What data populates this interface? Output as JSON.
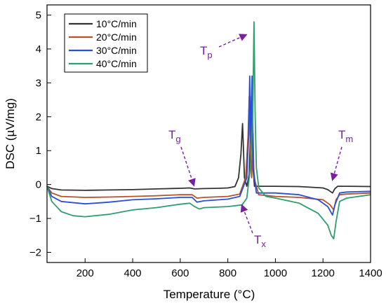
{
  "chart_data": {
    "type": "line",
    "xlabel": "Temperature (°C)",
    "ylabel": "DSC (µV/mg)",
    "xlim": [
      40,
      1400
    ],
    "ylim": [
      -2.3,
      5.3
    ],
    "xticks": [
      200,
      400,
      600,
      800,
      1000,
      1200,
      1400
    ],
    "yticks": [
      -2,
      -1,
      0,
      1,
      2,
      3,
      4,
      5
    ],
    "grid": false,
    "legend_position": "top-left",
    "series": [
      {
        "name": "10°C/min",
        "color": "#333333",
        "points": [
          [
            40,
            -0.05
          ],
          [
            60,
            -0.12
          ],
          [
            100,
            -0.16
          ],
          [
            200,
            -0.17
          ],
          [
            300,
            -0.16
          ],
          [
            400,
            -0.15
          ],
          [
            500,
            -0.13
          ],
          [
            600,
            -0.11
          ],
          [
            640,
            -0.1
          ],
          [
            660,
            -0.13
          ],
          [
            700,
            -0.12
          ],
          [
            760,
            -0.11
          ],
          [
            800,
            -0.1
          ],
          [
            830,
            -0.06
          ],
          [
            845,
            0.2
          ],
          [
            855,
            0.9
          ],
          [
            862,
            1.8
          ],
          [
            866,
            1.0
          ],
          [
            870,
            0.2
          ],
          [
            880,
            -0.05
          ],
          [
            890,
            0.3
          ],
          [
            900,
            2.6
          ],
          [
            906,
            0.5
          ],
          [
            912,
            -0.05
          ],
          [
            1000,
            -0.05
          ],
          [
            1100,
            -0.06
          ],
          [
            1200,
            -0.1
          ],
          [
            1220,
            -0.15
          ],
          [
            1240,
            -0.25
          ],
          [
            1250,
            -0.12
          ],
          [
            1262,
            -0.05
          ],
          [
            1300,
            -0.05
          ],
          [
            1400,
            -0.06
          ]
        ]
      },
      {
        "name": "20°C/min",
        "color": "#b5512b",
        "points": [
          [
            40,
            -0.05
          ],
          [
            60,
            -0.25
          ],
          [
            100,
            -0.35
          ],
          [
            200,
            -0.38
          ],
          [
            300,
            -0.37
          ],
          [
            400,
            -0.35
          ],
          [
            500,
            -0.33
          ],
          [
            600,
            -0.3
          ],
          [
            650,
            -0.3
          ],
          [
            670,
            -0.4
          ],
          [
            700,
            -0.38
          ],
          [
            800,
            -0.35
          ],
          [
            850,
            -0.28
          ],
          [
            875,
            0.2
          ],
          [
            885,
            1.4
          ],
          [
            890,
            2.6
          ],
          [
            895,
            1.0
          ],
          [
            900,
            0.2
          ],
          [
            906,
            1.5
          ],
          [
            910,
            0.2
          ],
          [
            930,
            -0.3
          ],
          [
            1000,
            -0.35
          ],
          [
            1100,
            -0.38
          ],
          [
            1200,
            -0.45
          ],
          [
            1230,
            -0.6
          ],
          [
            1245,
            -0.75
          ],
          [
            1255,
            -0.45
          ],
          [
            1270,
            -0.3
          ],
          [
            1300,
            -0.28
          ],
          [
            1400,
            -0.25
          ]
        ]
      },
      {
        "name": "30°C/min",
        "color": "#2a4fd6",
        "points": [
          [
            40,
            -0.05
          ],
          [
            60,
            -0.35
          ],
          [
            100,
            -0.5
          ],
          [
            200,
            -0.57
          ],
          [
            300,
            -0.52
          ],
          [
            400,
            -0.45
          ],
          [
            500,
            -0.42
          ],
          [
            600,
            -0.38
          ],
          [
            650,
            -0.38
          ],
          [
            670,
            -0.52
          ],
          [
            700,
            -0.48
          ],
          [
            800,
            -0.43
          ],
          [
            850,
            -0.35
          ],
          [
            880,
            0.2
          ],
          [
            888,
            1.5
          ],
          [
            892,
            3.2
          ],
          [
            897,
            1.2
          ],
          [
            902,
            3.2
          ],
          [
            907,
            0.5
          ],
          [
            920,
            -0.25
          ],
          [
            950,
            -0.25
          ],
          [
            1000,
            -0.25
          ],
          [
            1100,
            -0.3
          ],
          [
            1180,
            -0.45
          ],
          [
            1220,
            -0.65
          ],
          [
            1240,
            -0.9
          ],
          [
            1250,
            -0.6
          ],
          [
            1270,
            -0.25
          ],
          [
            1300,
            -0.22
          ],
          [
            1400,
            -0.2
          ]
        ]
      },
      {
        "name": "40°C/min",
        "color": "#2e9e6e",
        "points": [
          [
            40,
            -0.05
          ],
          [
            60,
            -0.5
          ],
          [
            100,
            -0.8
          ],
          [
            150,
            -0.92
          ],
          [
            200,
            -0.95
          ],
          [
            300,
            -0.88
          ],
          [
            400,
            -0.75
          ],
          [
            500,
            -0.68
          ],
          [
            600,
            -0.58
          ],
          [
            640,
            -0.55
          ],
          [
            660,
            -0.65
          ],
          [
            680,
            -0.72
          ],
          [
            700,
            -0.68
          ],
          [
            800,
            -0.65
          ],
          [
            860,
            -0.6
          ],
          [
            880,
            -0.4
          ],
          [
            895,
            0.5
          ],
          [
            905,
            2.0
          ],
          [
            910,
            4.8
          ],
          [
            915,
            2.0
          ],
          [
            920,
            0.5
          ],
          [
            930,
            -0.1
          ],
          [
            960,
            -0.35
          ],
          [
            1000,
            -0.4
          ],
          [
            1100,
            -0.55
          ],
          [
            1180,
            -0.85
          ],
          [
            1220,
            -1.2
          ],
          [
            1235,
            -1.5
          ],
          [
            1245,
            -1.6
          ],
          [
            1255,
            -1.1
          ],
          [
            1270,
            -0.5
          ],
          [
            1300,
            -0.4
          ],
          [
            1400,
            -0.3
          ]
        ]
      }
    ],
    "annotations": [
      {
        "main": "T",
        "sub": "p"
      },
      {
        "main": "T",
        "sub": "g"
      },
      {
        "main": "T",
        "sub": "m"
      },
      {
        "main": "T",
        "sub": "x"
      }
    ]
  }
}
